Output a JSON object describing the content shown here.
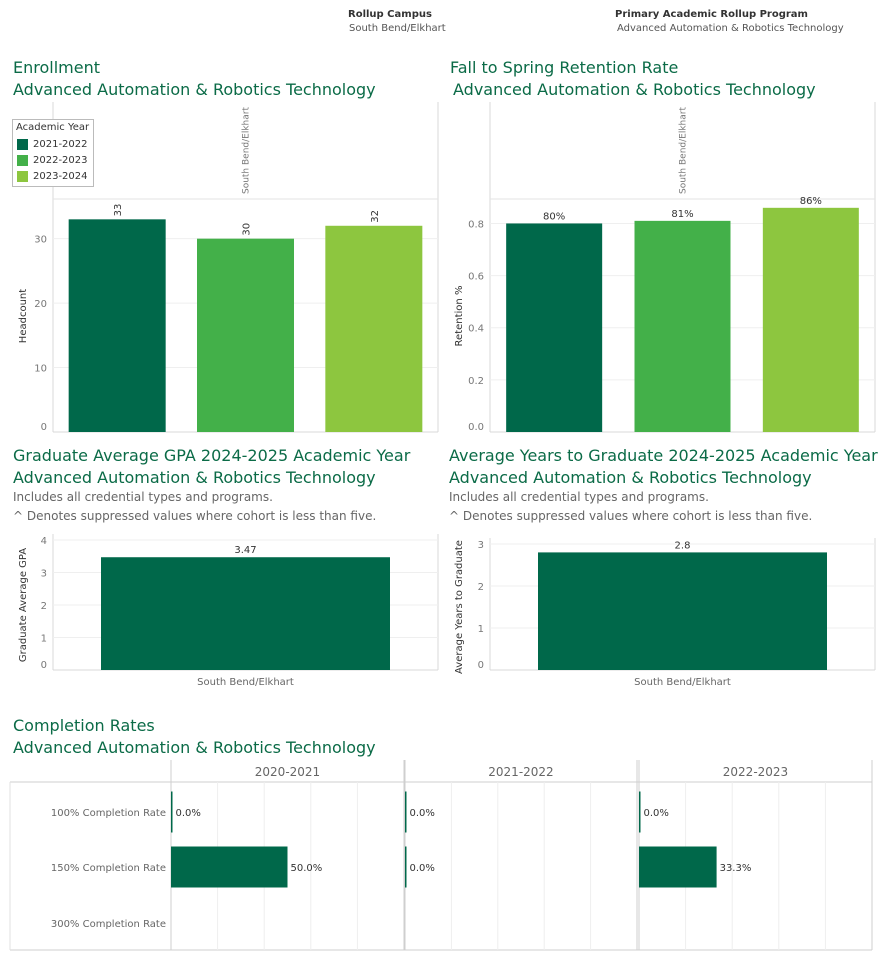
{
  "filters": {
    "campus_label": "Rollup Campus",
    "campus_value": "South Bend/Elkhart",
    "program_label": "Primary Academic Rollup Program",
    "program_value": "Advanced Automation & Robotics Technology"
  },
  "colors": {
    "dark": "#00684a",
    "mid": "#43b049",
    "light": "#8dc63f",
    "title": "#0b6b47"
  },
  "chart_data": [
    {
      "type": "bar",
      "title": "Enrollment",
      "subtitle": "Advanced Automation & Robotics Technology",
      "panel_label": "South Bend/Elkhart",
      "ylabel": "Headcount",
      "ylim": [
        0,
        36
      ],
      "yticks": [
        0,
        10,
        20,
        30
      ],
      "legend": {
        "title": "Academic Year",
        "placement": "top-left"
      },
      "categories": [
        "2021-2022",
        "2022-2023",
        "2023-2024"
      ],
      "values": [
        33,
        30,
        32
      ],
      "labels": [
        "33",
        "30",
        "32"
      ]
    },
    {
      "type": "bar",
      "title": "Fall to Spring Retention Rate",
      "subtitle": "Advanced Automation & Robotics Technology",
      "panel_label": "South Bend/Elkhart",
      "ylabel": "Retention %",
      "ylim": [
        0,
        0.89
      ],
      "yticks": [
        "0.0",
        "0.2",
        "0.4",
        "0.6",
        "0.8"
      ],
      "categories": [
        "2021-2022",
        "2022-2023",
        "2023-2024"
      ],
      "values": [
        0.8,
        0.81,
        0.86
      ],
      "labels": [
        "80%",
        "81%",
        "86%"
      ]
    },
    {
      "type": "bar",
      "title": "Graduate Average GPA 2024-2025 Academic Year",
      "subtitle": "Advanced Automation & Robotics Technology",
      "notes": [
        "Includes all credential types and programs.",
        "^ Denotes suppressed values where cohort is less than five."
      ],
      "ylabel": "Graduate Average GPA",
      "ylim": [
        0,
        4
      ],
      "yticks": [
        0,
        1,
        2,
        3,
        4
      ],
      "categories": [
        "South Bend/Elkhart"
      ],
      "values": [
        3.47
      ],
      "labels": [
        "3.47"
      ]
    },
    {
      "type": "bar",
      "title": "Average Years to Graduate 2024-2025 Academic Year",
      "subtitle": "Advanced Automation & Robotics Technology",
      "notes": [
        "Includes all credential types and programs.",
        "^ Denotes suppressed values where cohort is less than five."
      ],
      "ylabel": "Average Years to Graduate",
      "ylim": [
        0,
        3
      ],
      "yticks": [
        0,
        1,
        2,
        3
      ],
      "categories": [
        "South Bend/Elkhart"
      ],
      "values": [
        2.8
      ],
      "labels": [
        "2.8"
      ]
    },
    {
      "type": "bar",
      "orientation": "horizontal",
      "title": "Completion Rates",
      "subtitle": "Advanced Automation & Robotics Technology",
      "rows": [
        "100% Completion Rate",
        "150% Completion Rate",
        "300% Completion Rate"
      ],
      "xlim": [
        0,
        100
      ],
      "panels": [
        {
          "year": "2020-2021",
          "values": [
            0.0,
            50.0,
            null
          ],
          "labels": [
            "0.0%",
            "50.0%",
            ""
          ]
        },
        {
          "year": "2021-2022",
          "values": [
            0.0,
            0.0,
            null
          ],
          "labels": [
            "0.0%",
            "0.0%",
            ""
          ]
        },
        {
          "year": "2022-2023",
          "values": [
            0.0,
            33.3,
            null
          ],
          "labels": [
            "0.0%",
            "33.3%",
            ""
          ]
        }
      ]
    }
  ]
}
